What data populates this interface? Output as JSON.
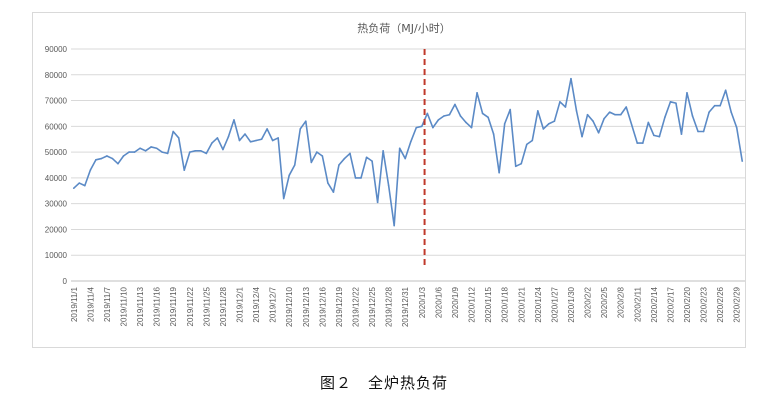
{
  "caption": "图２　全炉热负荷",
  "colors": {
    "line": "#5b8ac6",
    "marker": "#c0392b",
    "grid": "#d9d9d9",
    "axis": "#bfbfbf",
    "text": "#595959"
  },
  "chart_data": {
    "type": "line",
    "title": "热负荷（MJ/小时）",
    "xlabel": "",
    "ylabel": "",
    "ylim": [
      0,
      90000
    ],
    "yticks": [
      0,
      10000,
      20000,
      30000,
      40000,
      50000,
      60000,
      70000,
      80000,
      90000
    ],
    "grid": true,
    "legend": "none",
    "start_date": "2019/11/1",
    "x_tick_labels": [
      "2019/11/1",
      "2019/11/4",
      "2019/11/7",
      "2019/11/10",
      "2019/11/13",
      "2019/11/16",
      "2019/11/19",
      "2019/11/22",
      "2019/11/25",
      "2019/11/28",
      "2019/12/1",
      "2019/12/4",
      "2019/12/7",
      "2019/12/10",
      "2019/12/13",
      "2019/12/16",
      "2019/12/19",
      "2019/12/22",
      "2019/12/25",
      "2019/12/28",
      "2019/12/31",
      "2020/1/3",
      "2020/1/6",
      "2020/1/9",
      "2020/1/12",
      "2020/1/15",
      "2020/1/18",
      "2020/1/21",
      "2020/1/24",
      "2020/1/27",
      "2020/1/30",
      "2020/2/2",
      "2020/2/5",
      "2020/2/8",
      "2020/2/11",
      "2020/2/14",
      "2020/2/17",
      "2020/2/20",
      "2020/2/23",
      "2020/2/26",
      "2020/2/29"
    ],
    "marker_date": "2020/1/3",
    "series": [
      {
        "values": [
          36000,
          38000,
          37000,
          43000,
          47000,
          47500,
          48500,
          47500,
          45500,
          48500,
          50000,
          50000,
          51500,
          50500,
          52000,
          51500,
          50000,
          49500,
          58000,
          55500,
          43000,
          50000,
          50500,
          50500,
          49500,
          53500,
          55500,
          51000,
          56000,
          62500,
          54500,
          57000,
          54000,
          54500,
          55000,
          59000,
          54500,
          55500,
          32000,
          41000,
          45000,
          59000,
          62000,
          46000,
          50000,
          48500,
          38000,
          34500,
          45000,
          47500,
          49500,
          40000,
          40000,
          48000,
          46500,
          30500,
          50500,
          37000,
          21500,
          51500,
          47500,
          54000,
          59500,
          60000,
          65000,
          59500,
          62500,
          64000,
          64500,
          68500,
          64000,
          61500,
          59500,
          73000,
          65000,
          63500,
          57000,
          42000,
          61000,
          66500,
          44500,
          45500,
          53000,
          54500,
          66000,
          59000,
          61000,
          62000,
          69500,
          67500,
          78500,
          66000,
          56000,
          64500,
          62000,
          57500,
          63000,
          65500,
          64500,
          64500,
          67500,
          60500,
          53500,
          53500,
          61500,
          56500,
          56000,
          63500,
          69500,
          69000,
          57000,
          73000,
          64000,
          58000,
          58000,
          65500,
          68000,
          68000,
          74000,
          65500,
          59500,
          46500
        ]
      }
    ]
  }
}
